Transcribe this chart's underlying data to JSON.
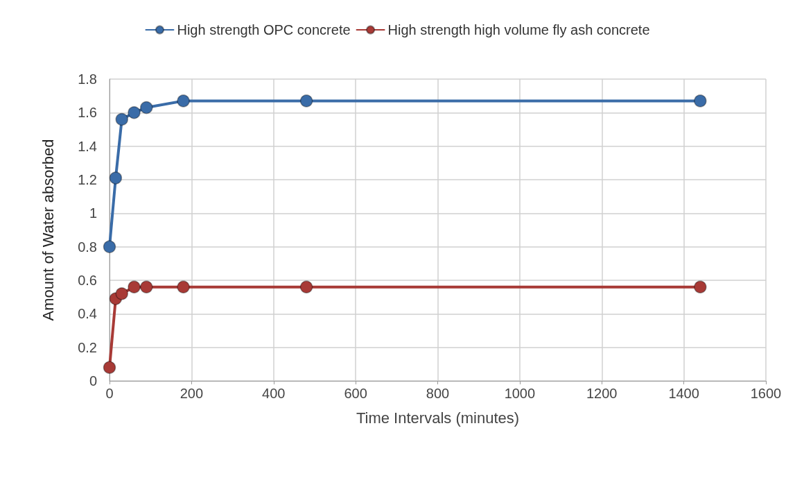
{
  "chart_data": {
    "type": "line",
    "xlabel": "Time Intervals (minutes)",
    "ylabel": "Amount of Water absorbed",
    "x": [
      0,
      15,
      30,
      60,
      90,
      180,
      480,
      1440
    ],
    "series": [
      {
        "name": "High strength OPC concrete",
        "color": "#3a6ca8",
        "values": [
          0.8,
          1.21,
          1.56,
          1.6,
          1.63,
          1.67,
          1.67,
          1.67
        ]
      },
      {
        "name": "High strength high volume fly ash concrete",
        "color": "#a83a36",
        "values": [
          0.08,
          0.49,
          0.52,
          0.56,
          0.56,
          0.56,
          0.56,
          0.56
        ]
      }
    ],
    "xlim": [
      0,
      1600
    ],
    "xticks": [
      0,
      200,
      400,
      600,
      800,
      1000,
      1200,
      1400,
      1600
    ],
    "ylim": [
      0,
      1.8
    ],
    "yticks": [
      0,
      0.2,
      0.4,
      0.6,
      0.8,
      1,
      1.2,
      1.4,
      1.6,
      1.8
    ],
    "grid": true,
    "legend": "top",
    "marker": "circle",
    "line_style": "solid"
  }
}
